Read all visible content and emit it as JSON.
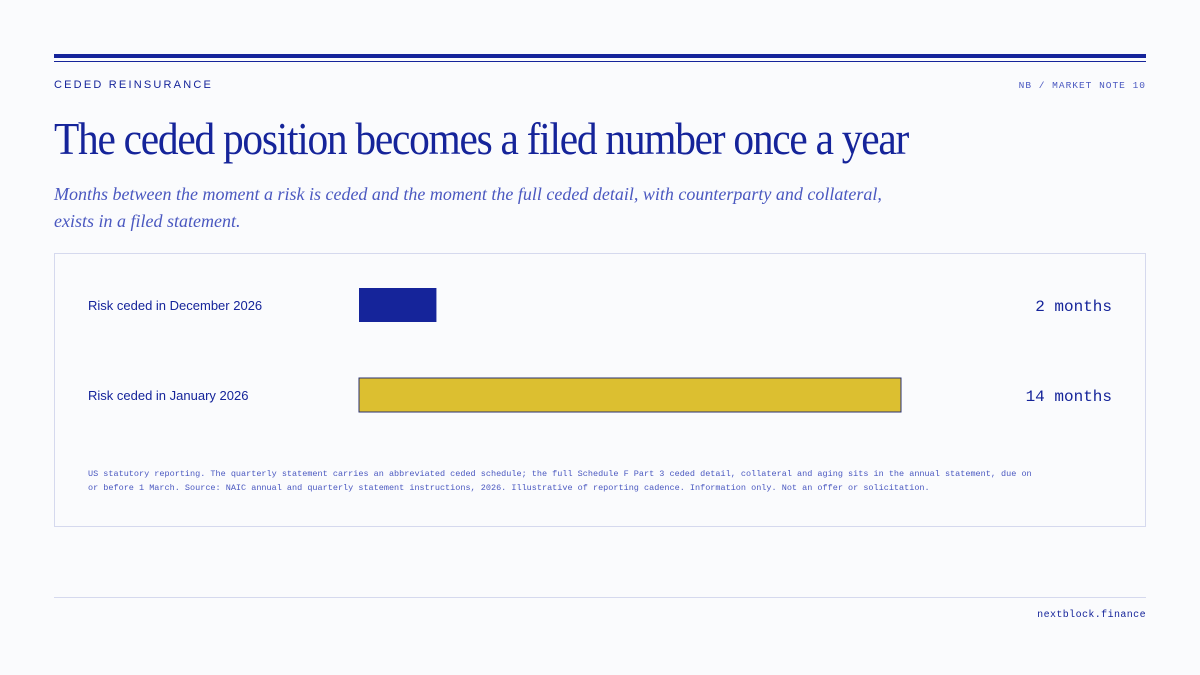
{
  "header": {
    "eyebrow": "CEDED REINSURANCE",
    "note_id": "NB / MARKET NOTE 10"
  },
  "title": "The ceded position becomes a filed number once a year",
  "subtitle": "Months between the moment a risk is ceded and the moment the full ceded detail, with counterparty and collateral, exists in a filed statement.",
  "chart_data": {
    "type": "bar",
    "orientation": "horizontal",
    "categories": [
      "Risk ceded in December 2026",
      "Risk ceded in January 2026"
    ],
    "values": [
      2,
      14
    ],
    "value_labels": [
      "2 months",
      "14 months"
    ],
    "colors": [
      "#15249a",
      "#dcbf30"
    ],
    "xlim": [
      0,
      14
    ],
    "grid": false,
    "legend": "none"
  },
  "footnote": "US statutory reporting. The quarterly statement carries an abbreviated ceded schedule; the full Schedule F Part 3 ceded detail, collateral and aging sits in the annual statement, due on or before 1 March. Source: NAIC annual and quarterly statement instructions, 2026. Illustrative of reporting cadence. Information only. Not an offer or solicitation.",
  "footer": {
    "url": "nextblock.finance"
  }
}
